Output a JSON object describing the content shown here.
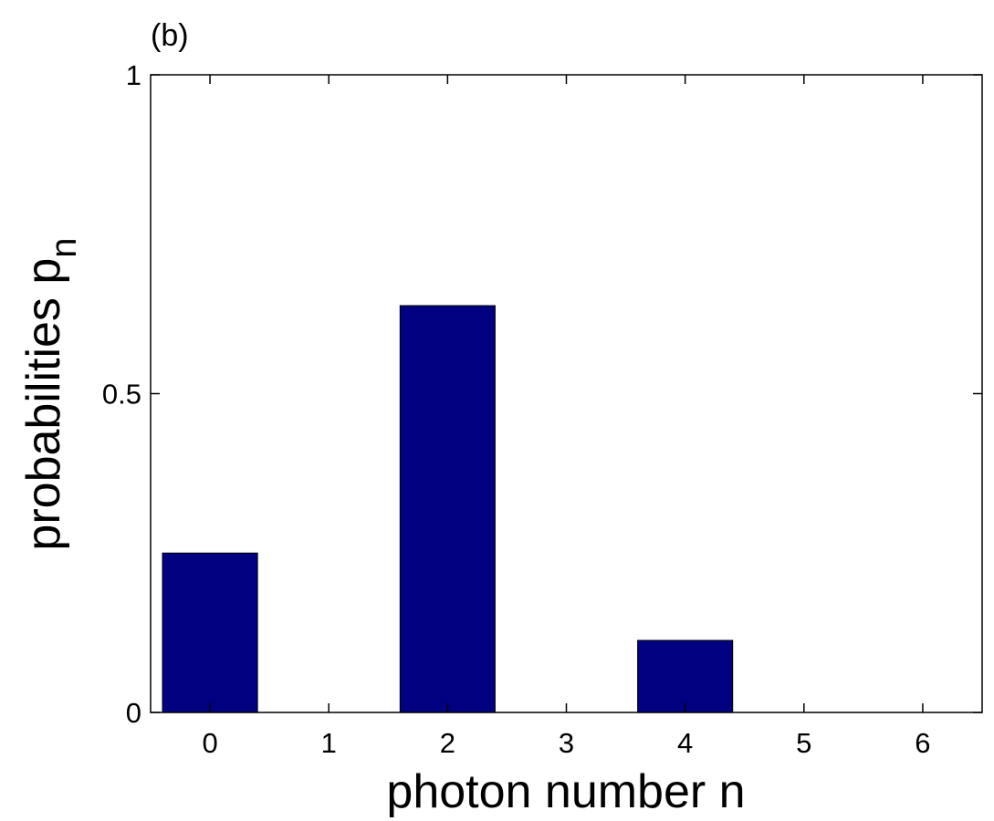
{
  "chart_data": {
    "type": "bar",
    "panel_label": "(b)",
    "xlabel": "photon number n",
    "ylabel": "probabilities p",
    "ylabel_subscript": "n",
    "x": [
      0,
      1,
      2,
      3,
      4,
      5,
      6
    ],
    "values": [
      0.25,
      0,
      0.638,
      0,
      0.113,
      0,
      0
    ],
    "color": "#000080",
    "bar_width": 0.8,
    "xlim": [
      -0.5,
      6.5
    ],
    "xticks": [
      0,
      1,
      2,
      3,
      4,
      5,
      6
    ],
    "ylim": [
      0,
      1
    ],
    "yticks": [
      0,
      0.5,
      1
    ],
    "grid": false
  }
}
